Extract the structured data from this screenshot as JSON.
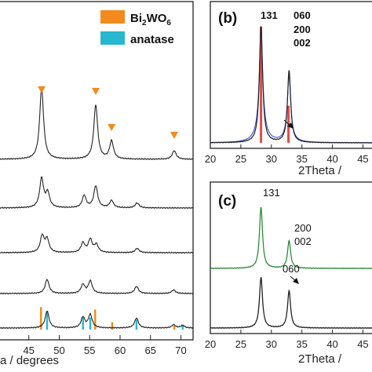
{
  "colors": {
    "bi2wo6": "#f28a1e",
    "anatase": "#27b7cf",
    "pattern": "#222222",
    "green_pattern": "#2e8b3e",
    "blue_fit": "#3a4fd0",
    "red_ref": "#e74a4a"
  },
  "legend": {
    "bi2wo6_main": "Bi",
    "bi2wo6_sub2": "2",
    "bi2wo6_wo": "WO",
    "bi2wo6_sub6": "6",
    "anatase": "anatase"
  },
  "panel_b": {
    "label": "(b)",
    "xlabel": "2Theta /",
    "peak_131": "131",
    "peak_060": "060",
    "peak_200": "200",
    "peak_002": "002"
  },
  "panel_c": {
    "label": "(c)",
    "xlabel": "2Theta /",
    "peak_131": "131",
    "peak_200": "200",
    "peak_002": "002",
    "peak_060": "060"
  },
  "panel_a": {
    "xlabel": "a / degrees"
  },
  "chart_data": [
    {
      "panel": "a",
      "type": "line",
      "xlabel": "a / degrees",
      "xlim": [
        40,
        72
      ],
      "ticks": [
        45,
        50,
        55,
        60,
        65,
        70
      ],
      "series": [
        {
          "peaks": [
            [
              47.1,
              1.0
            ],
            [
              56.0,
              0.75
            ],
            [
              58.6,
              0.25
            ],
            [
              68.9,
              0.12
            ]
          ]
        },
        {
          "peaks": [
            [
              47.1,
              0.6
            ],
            [
              48.1,
              0.3
            ],
            [
              54.1,
              0.25
            ],
            [
              56.0,
              0.45
            ],
            [
              58.6,
              0.15
            ],
            [
              62.8,
              0.1
            ]
          ]
        },
        {
          "peaks": [
            [
              47.2,
              0.38
            ],
            [
              48.0,
              0.3
            ],
            [
              53.9,
              0.22
            ],
            [
              55.1,
              0.3
            ],
            [
              56.1,
              0.18
            ],
            [
              62.8,
              0.1
            ]
          ]
        },
        {
          "peaks": [
            [
              48.0,
              0.4
            ],
            [
              53.9,
              0.25
            ],
            [
              55.1,
              0.35
            ],
            [
              62.7,
              0.2
            ],
            [
              68.8,
              0.1
            ]
          ]
        },
        {
          "peaks": [
            [
              48.0,
              0.52
            ],
            [
              53.9,
              0.32
            ],
            [
              55.1,
              0.4
            ],
            [
              62.7,
              0.3
            ],
            [
              68.8,
              0.1
            ],
            [
              70.3,
              0.08
            ]
          ]
        }
      ],
      "markers": [
        47.1,
        56.0,
        58.6,
        68.9
      ],
      "ref_bi2wo6": [
        [
          47.0,
          0.9
        ],
        [
          55.9,
          0.8
        ],
        [
          58.7,
          0.3
        ],
        [
          68.9,
          0.15
        ]
      ],
      "ref_anatase": [
        [
          48.0,
          0.85
        ],
        [
          53.9,
          0.55
        ],
        [
          55.1,
          0.55
        ],
        [
          62.7,
          0.45
        ],
        [
          70.3,
          0.2
        ]
      ]
    },
    {
      "panel": "b",
      "type": "line",
      "xlabel": "2Theta /",
      "xlim": [
        20,
        47
      ],
      "ticks": [
        20,
        25,
        30,
        35,
        40,
        45
      ],
      "series": [
        {
          "name": "",
          "peaks": [
            [
              28.3,
              1.0
            ],
            [
              32.9,
              0.62
            ]
          ]
        }
      ],
      "ref_bi2wo6": [
        [
          28.3,
          1.0
        ],
        [
          32.8,
          0.32
        ]
      ]
    },
    {
      "panel": "c",
      "type": "line",
      "xlabel": "2Theta /",
      "xlim": [
        20,
        47
      ],
      "ticks": [
        20,
        25,
        30,
        35,
        40,
        45
      ],
      "series": [
        {
          "name": "",
          "peaks": [
            [
              28.3,
              1.0
            ],
            [
              32.9,
              0.45
            ]
          ]
        },
        {
          "name": "",
          "peaks": [
            [
              28.3,
              0.75
            ],
            [
              32.9,
              0.55
            ]
          ]
        }
      ]
    }
  ]
}
